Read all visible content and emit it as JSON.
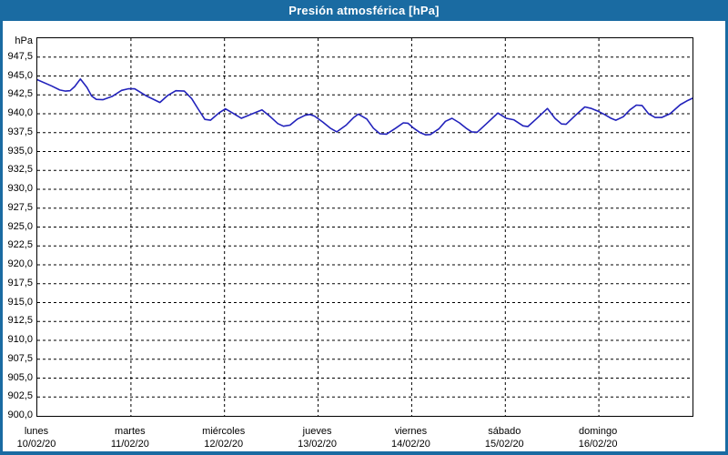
{
  "window": {
    "title": "Presión atmosférica [hPa]"
  },
  "colors": {
    "titlebar": "#1a6ba2",
    "window_border": "#1a6ba2",
    "plot_background": "#ffffff",
    "grid": "#000000",
    "axis_text": "#000000",
    "title_text": "#ffffff",
    "line": "#2222bb"
  },
  "chart_data": {
    "type": "line",
    "title": "Presión atmosférica [hPa]",
    "ylabel": "hPa",
    "xlabel": "",
    "ylim": [
      900,
      950
    ],
    "xlim_days": [
      0,
      7
    ],
    "grid": "dashed",
    "legend": "none",
    "y_ticks": [
      {
        "value": 947.5,
        "label": "947,5"
      },
      {
        "value": 945.0,
        "label": "945,0"
      },
      {
        "value": 942.5,
        "label": "942,5"
      },
      {
        "value": 940.0,
        "label": "940,0"
      },
      {
        "value": 937.5,
        "label": "937,5"
      },
      {
        "value": 935.0,
        "label": "935,0"
      },
      {
        "value": 932.5,
        "label": "932,5"
      },
      {
        "value": 930.0,
        "label": "930,0"
      },
      {
        "value": 927.5,
        "label": "927,5"
      },
      {
        "value": 925.0,
        "label": "925,0"
      },
      {
        "value": 922.5,
        "label": "922,5"
      },
      {
        "value": 920.0,
        "label": "920,0"
      },
      {
        "value": 917.5,
        "label": "917,5"
      },
      {
        "value": 915.0,
        "label": "915,0"
      },
      {
        "value": 912.5,
        "label": "912,5"
      },
      {
        "value": 910.0,
        "label": "910,0"
      },
      {
        "value": 907.5,
        "label": "907,5"
      },
      {
        "value": 905.0,
        "label": "905,0"
      },
      {
        "value": 902.5,
        "label": "902,5"
      },
      {
        "value": 900.0,
        "label": "900,0"
      }
    ],
    "x_ticks": [
      {
        "day": 0,
        "name": "lunes",
        "date": "10/02/20"
      },
      {
        "day": 1,
        "name": "martes",
        "date": "11/02/20"
      },
      {
        "day": 2,
        "name": "miércoles",
        "date": "12/02/20"
      },
      {
        "day": 3,
        "name": "jueves",
        "date": "13/02/20"
      },
      {
        "day": 4,
        "name": "viernes",
        "date": "14/02/20"
      },
      {
        "day": 5,
        "name": "sábado",
        "date": "15/02/20"
      },
      {
        "day": 6,
        "name": "domingo",
        "date": "16/02/20"
      }
    ],
    "series": [
      {
        "name": "Presión atmosférica [hPa]",
        "x_unit": "days since Monday 10/02/20 00:00",
        "points": [
          [
            0.0,
            944.5
          ],
          [
            0.15,
            943.7
          ],
          [
            0.24,
            943.15
          ],
          [
            0.3,
            943.0
          ],
          [
            0.35,
            943.05
          ],
          [
            0.4,
            943.6
          ],
          [
            0.46,
            944.6
          ],
          [
            0.53,
            943.5
          ],
          [
            0.58,
            942.35
          ],
          [
            0.63,
            941.9
          ],
          [
            0.7,
            941.85
          ],
          [
            0.8,
            942.3
          ],
          [
            0.9,
            943.1
          ],
          [
            0.97,
            943.3
          ],
          [
            1.04,
            943.3
          ],
          [
            1.16,
            942.4
          ],
          [
            1.26,
            941.8
          ],
          [
            1.31,
            941.5
          ],
          [
            1.39,
            942.4
          ],
          [
            1.48,
            943.05
          ],
          [
            1.57,
            943.0
          ],
          [
            1.65,
            942.0
          ],
          [
            1.72,
            940.6
          ],
          [
            1.79,
            939.25
          ],
          [
            1.85,
            939.15
          ],
          [
            1.94,
            940.1
          ],
          [
            2.01,
            940.65
          ],
          [
            2.1,
            940.0
          ],
          [
            2.18,
            939.4
          ],
          [
            2.28,
            939.9
          ],
          [
            2.4,
            940.5
          ],
          [
            2.49,
            939.6
          ],
          [
            2.57,
            938.7
          ],
          [
            2.63,
            938.35
          ],
          [
            2.7,
            938.5
          ],
          [
            2.78,
            939.3
          ],
          [
            2.86,
            939.8
          ],
          [
            2.91,
            939.9
          ],
          [
            2.96,
            939.7
          ],
          [
            3.05,
            938.9
          ],
          [
            3.13,
            938.1
          ],
          [
            3.2,
            937.6
          ],
          [
            3.3,
            938.5
          ],
          [
            3.38,
            939.5
          ],
          [
            3.43,
            939.95
          ],
          [
            3.52,
            939.3
          ],
          [
            3.59,
            938.1
          ],
          [
            3.66,
            937.35
          ],
          [
            3.73,
            937.3
          ],
          [
            3.83,
            938.1
          ],
          [
            3.91,
            938.8
          ],
          [
            3.96,
            938.75
          ],
          [
            4.02,
            938.1
          ],
          [
            4.09,
            937.5
          ],
          [
            4.15,
            937.2
          ],
          [
            4.2,
            937.25
          ],
          [
            4.29,
            938.0
          ],
          [
            4.36,
            939.0
          ],
          [
            4.43,
            939.4
          ],
          [
            4.51,
            938.8
          ],
          [
            4.58,
            938.1
          ],
          [
            4.64,
            937.6
          ],
          [
            4.7,
            937.55
          ],
          [
            4.8,
            938.7
          ],
          [
            4.92,
            940.1
          ],
          [
            5.01,
            939.4
          ],
          [
            5.09,
            939.2
          ],
          [
            5.19,
            938.4
          ],
          [
            5.24,
            938.3
          ],
          [
            5.33,
            939.3
          ],
          [
            5.45,
            940.7
          ],
          [
            5.53,
            939.4
          ],
          [
            5.6,
            938.65
          ],
          [
            5.65,
            938.6
          ],
          [
            5.75,
            939.8
          ],
          [
            5.85,
            940.9
          ],
          [
            5.92,
            940.7
          ],
          [
            5.98,
            940.4
          ],
          [
            6.06,
            939.9
          ],
          [
            6.13,
            939.4
          ],
          [
            6.18,
            939.15
          ],
          [
            6.26,
            939.6
          ],
          [
            6.33,
            940.5
          ],
          [
            6.4,
            941.15
          ],
          [
            6.46,
            941.1
          ],
          [
            6.53,
            940.0
          ],
          [
            6.6,
            939.5
          ],
          [
            6.67,
            939.5
          ],
          [
            6.76,
            940.0
          ],
          [
            6.87,
            941.2
          ],
          [
            6.94,
            941.7
          ],
          [
            7.0,
            942.05
          ]
        ]
      }
    ]
  }
}
